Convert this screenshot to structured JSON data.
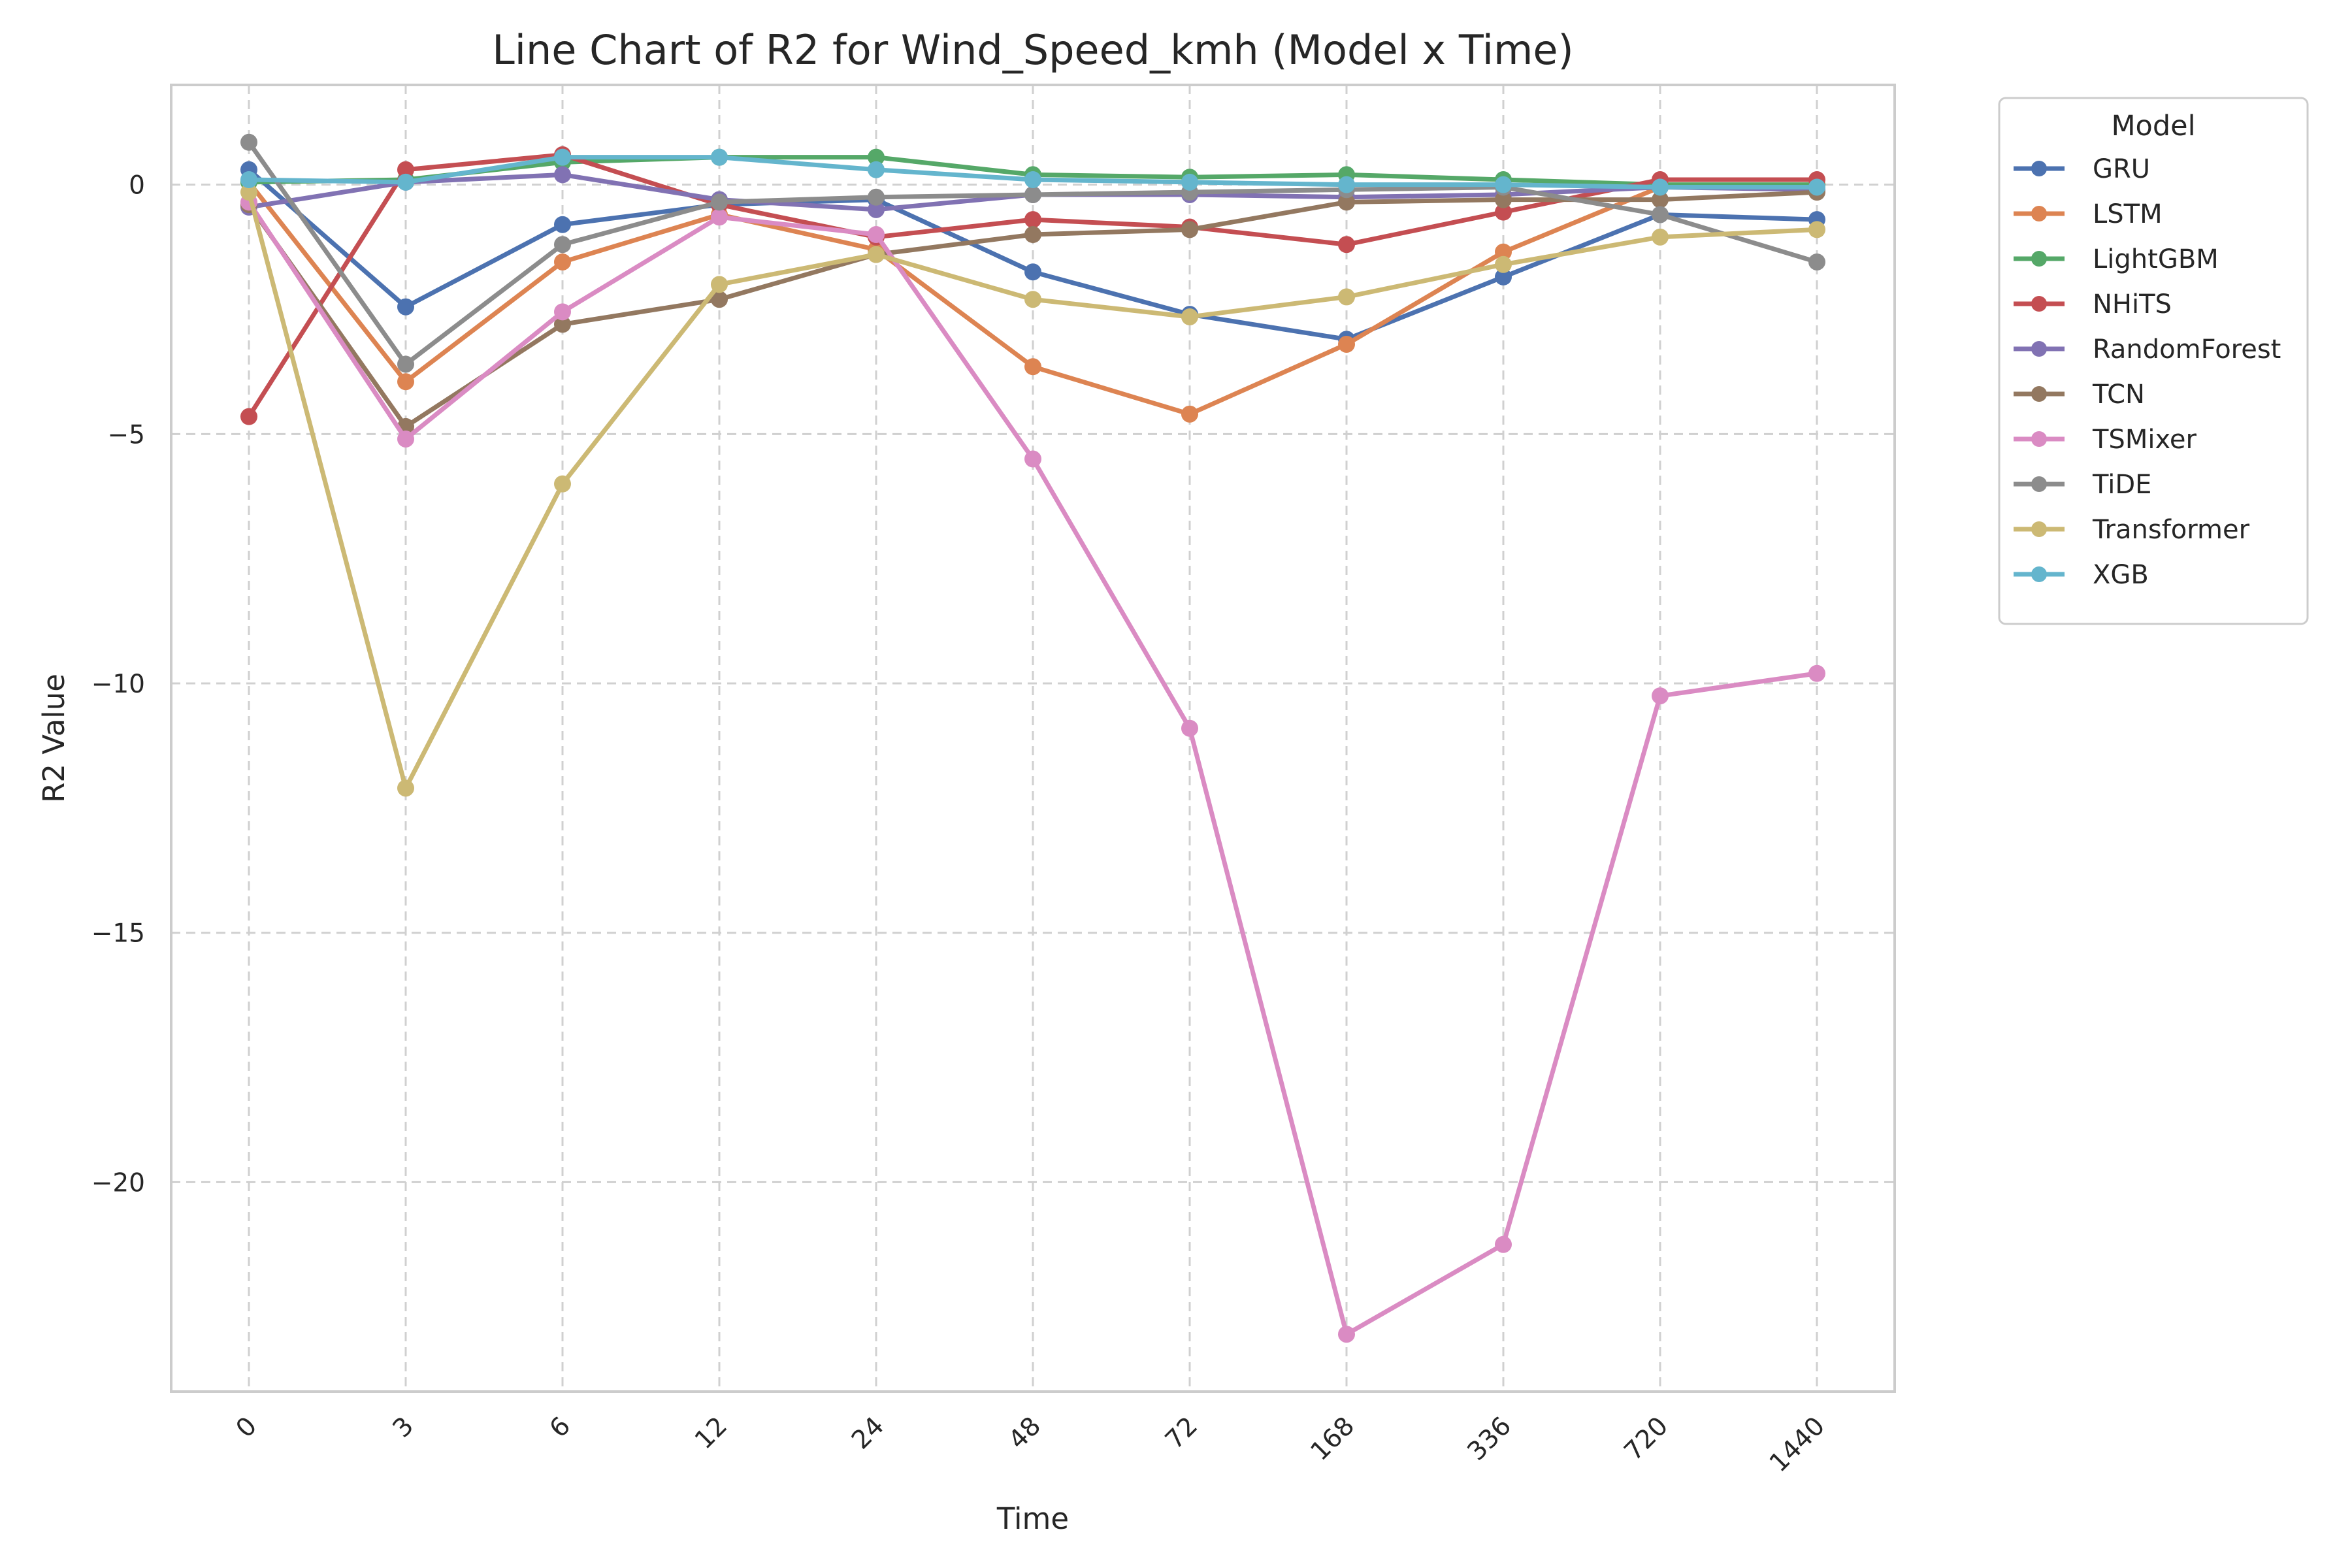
{
  "chart_data": {
    "type": "line",
    "title": "Line Chart of R2 for Wind_Speed_kmh (Model x Time)",
    "xlabel": "Time",
    "ylabel": "R2 Value",
    "categories": [
      "0",
      "3",
      "6",
      "12",
      "24",
      "48",
      "72",
      "168",
      "336",
      "720",
      "1440"
    ],
    "ylim": [
      -24.2,
      2.0
    ],
    "yticks": [
      0,
      -5,
      -10,
      -15,
      -20
    ],
    "ytick_labels": [
      "0",
      "−5",
      "−10",
      "−15",
      "−20"
    ],
    "grid": true,
    "legend": {
      "title": "Model",
      "placement": "outside-right"
    },
    "series": [
      {
        "name": "GRU",
        "color": "#4c72b0",
        "values": [
          0.3,
          -2.45,
          -0.8,
          -0.4,
          -0.3,
          -1.75,
          -2.6,
          -3.1,
          -1.85,
          -0.6,
          -0.7
        ]
      },
      {
        "name": "LSTM",
        "color": "#dd8452",
        "values": [
          0.05,
          -3.95,
          -1.55,
          -0.6,
          -1.3,
          -3.65,
          -4.6,
          -3.2,
          -1.35,
          -0.05,
          0.0
        ]
      },
      {
        "name": "LightGBM",
        "color": "#55a868",
        "values": [
          0.05,
          0.1,
          0.45,
          0.55,
          0.55,
          0.2,
          0.15,
          0.2,
          0.1,
          0.0,
          0.0
        ]
      },
      {
        "name": "NHiTS",
        "color": "#c44e52",
        "values": [
          -4.65,
          0.3,
          0.6,
          -0.4,
          -1.05,
          -0.7,
          -0.85,
          -1.2,
          -0.55,
          0.1,
          0.1
        ]
      },
      {
        "name": "RandomForest",
        "color": "#8172b3",
        "values": [
          -0.45,
          0.05,
          0.2,
          -0.3,
          -0.5,
          -0.2,
          -0.2,
          -0.25,
          -0.2,
          -0.05,
          -0.1
        ]
      },
      {
        "name": "TCN",
        "color": "#937860",
        "values": [
          -0.4,
          -4.85,
          -2.8,
          -2.3,
          -1.4,
          -1.0,
          -0.9,
          -0.35,
          -0.3,
          -0.3,
          -0.15
        ]
      },
      {
        "name": "TSMixer",
        "color": "#da8bc3",
        "values": [
          -0.35,
          -5.1,
          -2.55,
          -0.65,
          -1.0,
          -5.5,
          -10.9,
          -23.05,
          -21.25,
          -10.25,
          -9.8
        ]
      },
      {
        "name": "TiDE",
        "color": "#8c8c8c",
        "values": [
          0.85,
          -3.6,
          -1.2,
          -0.35,
          -0.25,
          -0.2,
          -0.15,
          -0.1,
          -0.05,
          -0.6,
          -1.55
        ]
      },
      {
        "name": "Transformer",
        "color": "#ccb974",
        "values": [
          -0.15,
          -12.1,
          -6.0,
          -2.0,
          -1.4,
          -2.3,
          -2.65,
          -2.25,
          -1.6,
          -1.05,
          -0.9
        ]
      },
      {
        "name": "XGB",
        "color": "#64b5cd",
        "values": [
          0.1,
          0.05,
          0.55,
          0.55,
          0.3,
          0.1,
          0.05,
          0.0,
          0.0,
          -0.05,
          -0.05
        ]
      }
    ]
  }
}
